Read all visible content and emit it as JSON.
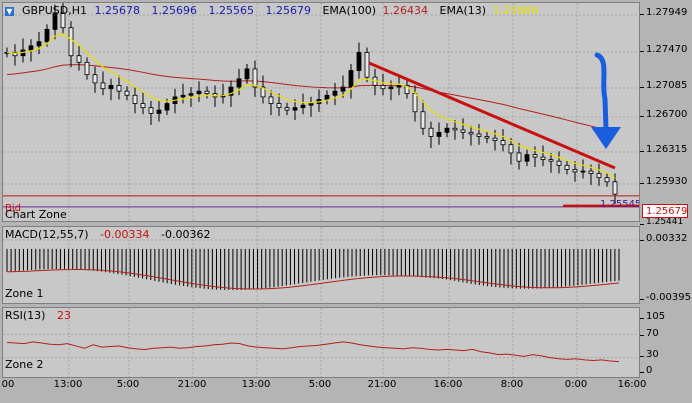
{
  "main": {
    "header": {
      "symbol": "GBPUSD,H1",
      "open": "1.25678",
      "high": "1.25696",
      "low": "1.25565",
      "close": "1.25679",
      "ema100_label": "EMA(100)",
      "ema100_value": "1.26434",
      "ema13_label": "EMA(13)",
      "ema13_value": "1.25886"
    },
    "zone_label": "Chart Zone",
    "bid_label": "Bid",
    "price_tag": "1.25679",
    "level_label": "1.25545",
    "yticks": [
      "1.27949",
      "1.27470",
      "1.27085",
      "1.26700",
      "1.26315",
      "1.25930",
      "1.25441"
    ]
  },
  "macd": {
    "label": "MACD(12,55,7)",
    "value1": "-0.00334",
    "value2": "-0.00362",
    "zone_label": "Zone 1",
    "yticks": [
      "0.00332",
      "-0.00395"
    ]
  },
  "rsi": {
    "label": "RSI(13)",
    "value": "23",
    "zone_label": "Zone 2",
    "yticks": [
      "105",
      "70",
      "30",
      "0"
    ]
  },
  "xaxis": {
    "ticks": [
      "00",
      "13:00",
      "5:00",
      "21:00",
      "13:00",
      "5:00",
      "21:00",
      "16:00",
      "8:00",
      "0:00",
      "16:00"
    ]
  },
  "colors": {
    "background": "#c8c8c8",
    "candle": "#000000",
    "ema100": "#b02020",
    "ema13": "#e8e000",
    "trendline": "#c81010",
    "annotation_arrow": "#1a5ee0",
    "bid_line": "#c81010",
    "level_line": "#6a2aa0"
  },
  "chart_data": [
    {
      "type": "candlestick",
      "title": "GBPUSD,H1",
      "ylim": [
        1.2535,
        1.2802
      ],
      "series": [
        {
          "name": "EMA(100)",
          "last": 1.26434
        },
        {
          "name": "EMA(13)",
          "last": 1.25886
        }
      ],
      "close": [
        1.2742,
        1.2738,
        1.2745,
        1.275,
        1.2755,
        1.277,
        1.279,
        1.2772,
        1.2738,
        1.273,
        1.2715,
        1.2705,
        1.2698,
        1.2702,
        1.2695,
        1.269,
        1.268,
        1.2675,
        1.2668,
        1.2672,
        1.268,
        1.2688,
        1.269,
        1.2692,
        1.2695,
        1.2692,
        1.2688,
        1.269,
        1.27,
        1.271,
        1.2722,
        1.27,
        1.2688,
        1.268,
        1.2675,
        1.2672,
        1.2675,
        1.2678,
        1.268,
        1.2685,
        1.269,
        1.2695,
        1.27,
        1.272,
        1.2742,
        1.2712,
        1.2702,
        1.2698,
        1.27,
        1.2702,
        1.2692,
        1.267,
        1.265,
        1.264,
        1.2645,
        1.265,
        1.2648,
        1.2645,
        1.2643,
        1.264,
        1.2638,
        1.2635,
        1.263,
        1.262,
        1.261,
        1.2618,
        1.2615,
        1.2612,
        1.261,
        1.2605,
        1.26,
        1.2597,
        1.2598,
        1.2595,
        1.259,
        1.2585,
        1.257
      ],
      "trendline": {
        "from": {
          "x": "19:00",
          "y": 1.2742
        },
        "to": {
          "x": "16:00",
          "y": 1.2599
        }
      },
      "horizontal_levels": [
        1.25679,
        1.25545
      ]
    },
    {
      "type": "bar",
      "title": "MACD(12,55,7)",
      "ylim": [
        -0.00395,
        0.00332
      ],
      "values_last": [
        -0.00334,
        -0.00362
      ]
    },
    {
      "type": "line",
      "title": "RSI(13)",
      "ylim": [
        0,
        105
      ],
      "levels": [
        30,
        70
      ],
      "values": [
        56,
        55,
        54,
        57,
        55,
        53,
        52,
        54,
        50,
        46,
        52,
        48,
        49,
        50,
        47,
        45,
        44,
        46,
        47,
        48,
        46,
        47,
        49,
        50,
        52,
        53,
        55,
        54,
        50,
        48,
        47,
        46,
        45,
        47,
        49,
        50,
        51,
        53,
        55,
        57,
        55,
        52,
        50,
        48,
        47,
        46,
        45,
        47,
        46,
        44,
        43,
        44,
        43,
        42,
        44,
        40,
        38,
        35,
        36,
        34,
        32,
        35,
        33,
        30,
        28,
        27,
        28,
        26,
        25,
        26,
        24,
        23
      ]
    }
  ]
}
